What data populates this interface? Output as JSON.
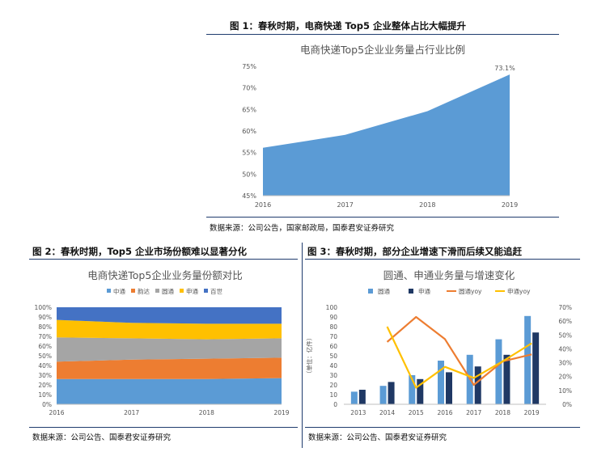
{
  "figures": {
    "fig1": {
      "label": "图 1：春秋时期，电商快递 Top5 企业整体占比大幅提升",
      "source": "数据来源：公司公告，国家邮政局，国泰君安证券研究"
    },
    "fig2": {
      "label": "图 2：春秋时期，Top5 企业市场份额难以显著分化",
      "source": "数据来源：公司公告、国泰君安证券研究"
    },
    "fig3": {
      "label": "图 3：春秋时期，部分企业增速下滑而后续又能追赶",
      "source": "数据来源：公司公告、国泰君安证券研究"
    }
  },
  "chart_data": [
    {
      "type": "area",
      "title": "电商快递Top5企业业务量占行业比例",
      "x": [
        "2016",
        "2017",
        "2018",
        "2019"
      ],
      "values": [
        56.1,
        59.1,
        64.6,
        73.1
      ],
      "ylim": [
        45,
        75
      ],
      "yticks": [
        "45%",
        "50%",
        "55%",
        "60%",
        "65%",
        "70%",
        "75%"
      ],
      "annotation": "73.1%",
      "color": "#5b9bd5",
      "grid": false
    },
    {
      "type": "area",
      "stacked": true,
      "title": "电商快递Top5企业业务量份额对比",
      "x": [
        "2016",
        "2017",
        "2018",
        "2019"
      ],
      "legend_position": "top",
      "series": [
        {
          "name": "中通",
          "values": [
            26,
            26,
            26,
            27
          ],
          "color": "#5b9bd5"
        },
        {
          "name": "韵达",
          "values": [
            18,
            20,
            21,
            21
          ],
          "color": "#ed7d31"
        },
        {
          "name": "圆通",
          "values": [
            25,
            22,
            20,
            20
          ],
          "color": "#a5a5a5"
        },
        {
          "name": "申通",
          "values": [
            18,
            16,
            16,
            15
          ],
          "color": "#ffc000"
        },
        {
          "name": "百世",
          "values": [
            13,
            16,
            17,
            17
          ],
          "color": "#4472c4"
        }
      ],
      "ylim": [
        0,
        100
      ],
      "yticks": [
        "0%",
        "10%",
        "20%",
        "30%",
        "40%",
        "50%",
        "60%",
        "70%",
        "80%",
        "90%",
        "100%"
      ],
      "grid": false
    },
    {
      "type": "bar",
      "title": "圆通、申通业务量与增速变化",
      "x": [
        "2013",
        "2014",
        "2015",
        "2016",
        "2017",
        "2018",
        "2019"
      ],
      "ylabel": "（单位：亿件）",
      "ylim": [
        0,
        100
      ],
      "yticks": [
        "0",
        "10",
        "20",
        "30",
        "40",
        "50",
        "60",
        "70",
        "80",
        "90",
        "100"
      ],
      "y2lim": [
        0,
        70
      ],
      "y2ticks": [
        "0%",
        "10%",
        "20%",
        "30%",
        "40%",
        "50%",
        "60%",
        "70%"
      ],
      "legend_position": "top",
      "series": [
        {
          "name": "圆通",
          "kind": "bar",
          "axis": "left",
          "values": [
            13,
            19,
            30,
            45,
            51,
            67,
            91
          ],
          "color": "#5b9bd5"
        },
        {
          "name": "申通",
          "kind": "bar",
          "axis": "left",
          "values": [
            15,
            23,
            26,
            33,
            39,
            51,
            74
          ],
          "color": "#1f3864"
        },
        {
          "name": "圆通yoy",
          "kind": "line",
          "axis": "right",
          "values": [
            null,
            45,
            63,
            47,
            14,
            31,
            36
          ],
          "color": "#ed7d31"
        },
        {
          "name": "申通yoy",
          "kind": "line",
          "axis": "right",
          "values": [
            null,
            56,
            12,
            27,
            19,
            31,
            44
          ],
          "color": "#ffc000"
        }
      ],
      "grid": false
    }
  ]
}
